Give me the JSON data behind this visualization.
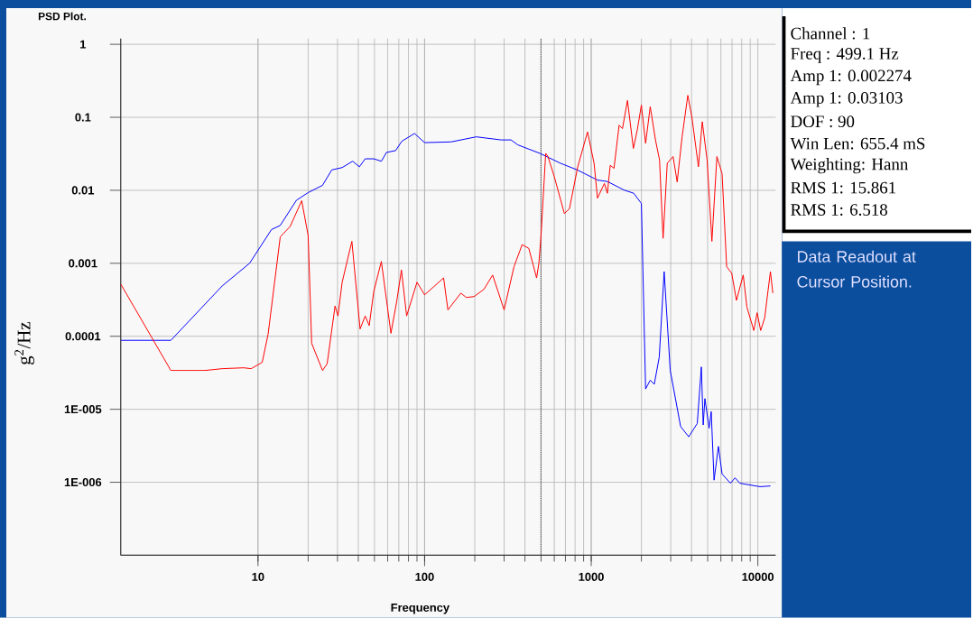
{
  "chart_data": {
    "type": "line",
    "title": "PSD Plot.",
    "xlabel": "Frequency",
    "ylabel": "g$^{2}$/Hz",
    "log": "xy",
    "grid": true,
    "xlim": [
      1.5,
      12800
    ],
    "ylim": [
      1e-07,
      1.2
    ],
    "xticks": [
      10,
      100,
      1000,
      10000
    ],
    "yticks": [
      1,
      0.1,
      0.01,
      0.001,
      0.0001,
      {
        "value": 1e-05,
        "label": "1E-005"
      },
      {
        "value": 1e-06,
        "label": "1E-006"
      }
    ],
    "ref_lines": [
      {
        "axis": "x",
        "value": 499.1,
        "line_style": "dotted",
        "color": "#000000"
      }
    ],
    "annotations": [
      "Channel : 1",
      "Freq  :  499.1 Hz",
      "Amp 1: 0.002274",
      "Amp 1: 0.03103",
      "DOF    : 90",
      "Win Len:  655.4 mS",
      "Weighting: Hann",
      "RMS 1: 15.861",
      "RMS 1:  6.518",
      "Data Readout at Cursor Position."
    ],
    "series": [
      {
        "color": "#0000ff",
        "x": [
          1.5,
          3,
          6.1,
          8.9,
          12.05,
          13.6,
          17,
          20,
          24.4,
          27.7,
          32,
          37,
          40.6,
          44,
          49.5,
          55,
          59,
          67,
          73,
          87,
          100,
          144,
          204,
          288,
          330,
          362,
          493,
          653,
          830,
          1090,
          1250,
          1570,
          1800,
          2000,
          2120,
          2260,
          2390,
          2560,
          2740,
          2980,
          3440,
          3850,
          4330,
          4580,
          4700,
          4810,
          5100,
          5250,
          5460,
          5800,
          6100,
          6850,
          7300,
          7800,
          10300,
          11900
        ],
        "values": [
          8.8e-05,
          8.8e-05,
          0.00049,
          0.001,
          0.0029,
          0.0033,
          0.0073,
          0.0093,
          0.0117,
          0.019,
          0.0205,
          0.025,
          0.021,
          0.027,
          0.027,
          0.025,
          0.033,
          0.035,
          0.047,
          0.06,
          0.045,
          0.046,
          0.054,
          0.049,
          0.049,
          0.042,
          0.032,
          0.0235,
          0.0189,
          0.0138,
          0.0132,
          0.0101,
          0.0091,
          0.0066,
          1.9e-05,
          2.5e-05,
          2.2e-05,
          5.2e-05,
          0.00077,
          3.4e-05,
          5.8e-06,
          4.2e-06,
          6.4e-06,
          3.8e-05,
          6.1e-06,
          1.4e-05,
          5.5e-06,
          9.3e-06,
          1.07e-06,
          3.1e-06,
          1.3e-06,
          9.7e-07,
          1.15e-06,
          9.7e-07,
          8.7e-07,
          8.9e-07
        ]
      },
      {
        "color": "#ff0000",
        "x": [
          1.5,
          3,
          4.8,
          6.1,
          8.2,
          9.1,
          10.6,
          11.5,
          13.6,
          15.6,
          18.3,
          20,
          21,
          24.4,
          26,
          29,
          30.2,
          32,
          36.6,
          41,
          44,
          46.5,
          49.5,
          55,
          62.8,
          68,
          72.6,
          78,
          90,
          100,
          130,
          138,
          165,
          178,
          198,
          227,
          256,
          300,
          344,
          385,
          422,
          470,
          485,
          499.1,
          533,
          550,
          600,
          690,
          740,
          830,
          950,
          1040,
          1090,
          1200,
          1250,
          1300,
          1370,
          1470,
          1540,
          1650,
          1790,
          1890,
          2000,
          2120,
          2260,
          2430,
          2570,
          2700,
          2860,
          3100,
          3280,
          3510,
          3800,
          4020,
          4400,
          4640,
          4960,
          5300,
          5680,
          6100,
          6500,
          6970,
          7440,
          8170,
          8600,
          9460,
          9900,
          10400,
          11000,
          11300,
          11900,
          12300
        ],
        "values": [
          0.00052,
          3.4e-05,
          3.4e-05,
          3.6e-05,
          3.7e-05,
          3.6e-05,
          4.4e-05,
          0.000107,
          0.0023,
          0.0032,
          0.0072,
          0.0024,
          8e-05,
          3.4e-05,
          4.2e-05,
          0.00026,
          0.00019,
          0.00055,
          0.002,
          0.000126,
          0.00019,
          0.00014,
          0.00041,
          0.00106,
          0.00011,
          0.0003,
          0.00081,
          0.00019,
          0.00055,
          0.00037,
          0.00063,
          0.00023,
          0.00039,
          0.00034,
          0.00035,
          0.00044,
          0.00069,
          0.00023,
          0.0009,
          0.0018,
          0.0016,
          0.00063,
          0.001,
          0.002274,
          0.032,
          0.029,
          0.0154,
          0.0048,
          0.0056,
          0.021,
          0.063,
          0.0235,
          0.0078,
          0.0124,
          0.0091,
          0.022,
          0.02,
          0.078,
          0.07,
          0.17,
          0.0375,
          0.067,
          0.147,
          0.044,
          0.14,
          0.049,
          0.026,
          0.0022,
          0.0235,
          0.029,
          0.013,
          0.054,
          0.2,
          0.1,
          0.021,
          0.087,
          0.026,
          0.002,
          0.029,
          0.017,
          0.0009,
          0.00073,
          0.00031,
          0.00069,
          0.00025,
          0.00012,
          0.00021,
          0.00012,
          0.00018,
          0.0003,
          0.00077,
          0.00039
        ]
      }
    ]
  }
}
